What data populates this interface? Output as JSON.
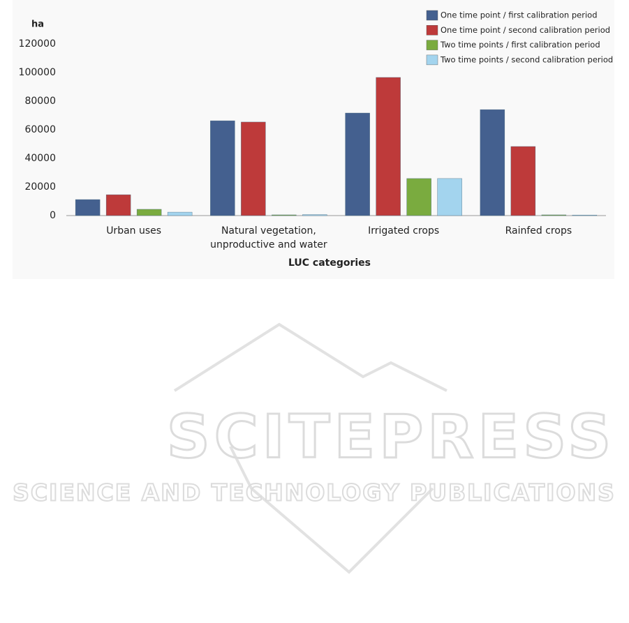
{
  "chart_data": {
    "type": "bar",
    "y_label": "ha",
    "x_label": "LUC categories",
    "categories": [
      "Urban uses",
      "Natural vegetation, unproductive and water",
      "Irrigated crops",
      "Rainfed crops"
    ],
    "series": [
      {
        "name": "One time point / first calibration period",
        "color": "#44608f",
        "values": [
          11200,
          66300,
          71700,
          74100
        ]
      },
      {
        "name": "One time point / second calibration period",
        "color": "#be3a3a",
        "values": [
          14600,
          65400,
          96600,
          48300
        ]
      },
      {
        "name": "Two time points / first calibration period",
        "color": "#7aab3f",
        "values": [
          4400,
          500,
          25900,
          500
        ]
      },
      {
        "name": "Two time points / second calibration period",
        "color": "#a3d4ee",
        "values": [
          2400,
          700,
          25900,
          400
        ]
      }
    ],
    "ylim": [
      0,
      120000
    ],
    "yticks": [
      0,
      20000,
      40000,
      60000,
      80000,
      100000,
      120000
    ],
    "grid": false,
    "legend": "top-right"
  },
  "watermark": {
    "title": "SCITEPRESS",
    "subtitle": "SCIENCE AND TECHNOLOGY PUBLICATIONS"
  }
}
